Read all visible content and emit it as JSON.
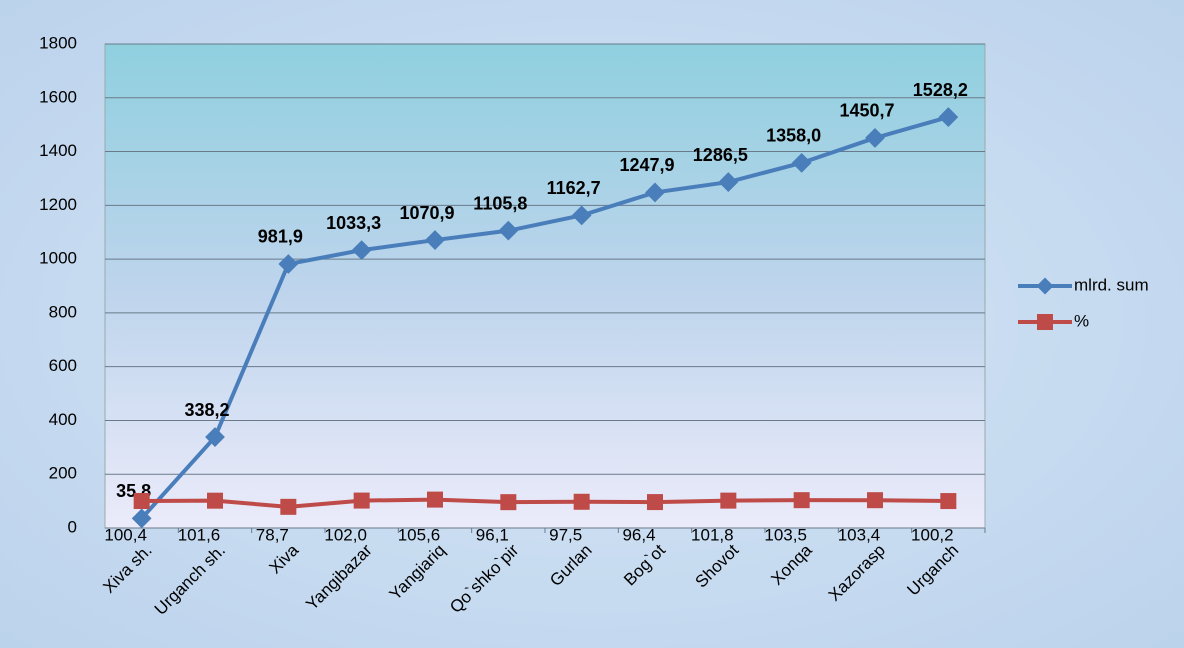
{
  "chart_data": {
    "type": "line",
    "categories": [
      "Xiva sh.",
      "Urganch sh.",
      "Xiva",
      "Yangibazar",
      "Yangiariq",
      "Qo`shko`pir",
      "Gurlan",
      "Bog`ot",
      "Shovot",
      "Xonqa",
      "Xazorasp",
      "Urganch"
    ],
    "series": [
      {
        "name": "mlrd. sum",
        "color": "#4a7ebb",
        "values": [
          35.8,
          338.2,
          981.9,
          1033.3,
          1070.9,
          1105.8,
          1162.7,
          1247.9,
          1286.5,
          1358.0,
          1450.7,
          1528.2
        ],
        "value_labels": [
          "35,8",
          "338,2",
          "981,9",
          "1033,3",
          "1070,9",
          "1105,8",
          "1162,7",
          "1247,9",
          "1286,5",
          "1358,0",
          "1450,7",
          "1528,2"
        ]
      },
      {
        "name": "%",
        "color": "#be4b48",
        "values": [
          100.4,
          101.6,
          78.7,
          102.0,
          105.6,
          96.1,
          97.5,
          96.4,
          101.8,
          103.5,
          103.4,
          100.2
        ],
        "value_labels": [
          "100,4",
          "101,6",
          "78,7",
          "102,0",
          "105,6",
          "96,1",
          "97,5",
          "96,4",
          "101,8",
          "103,5",
          "103,4",
          "100,2"
        ]
      }
    ],
    "ylim": [
      0,
      1800
    ],
    "yticks": [
      0,
      200,
      400,
      600,
      800,
      1000,
      1200,
      1400,
      1600,
      1800
    ],
    "grid": true,
    "legend": "right"
  }
}
